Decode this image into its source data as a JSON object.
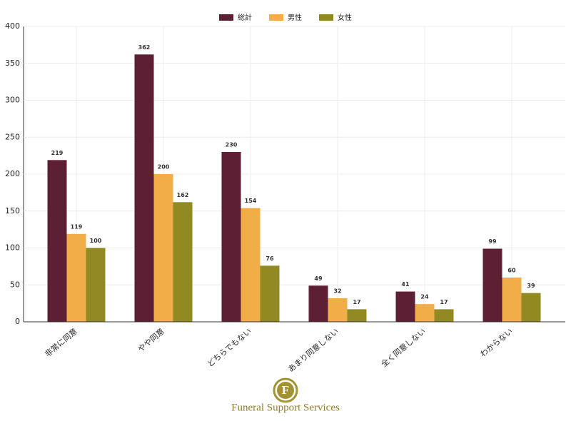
{
  "chart_data": {
    "type": "bar",
    "categories": [
      "非常に同意",
      "やや同意",
      "どちらでもない",
      "あまり同意しない",
      "全く同意しない",
      "わからない"
    ],
    "series": [
      {
        "name": "総計",
        "color": "#5c1f33",
        "values": [
          219,
          362,
          230,
          49,
          41,
          99
        ]
      },
      {
        "name": "男性",
        "color": "#f0ad48",
        "values": [
          119,
          200,
          154,
          32,
          24,
          60
        ]
      },
      {
        "name": "女性",
        "color": "#918a22",
        "values": [
          100,
          162,
          76,
          17,
          17,
          39
        ]
      }
    ],
    "ylim": [
      0,
      400
    ],
    "yticks": [
      0,
      50,
      100,
      150,
      200,
      250,
      300,
      350,
      400
    ],
    "grid": true,
    "legend": "top"
  },
  "logo": {
    "letter": "F",
    "text": "Funeral Support Services"
  }
}
